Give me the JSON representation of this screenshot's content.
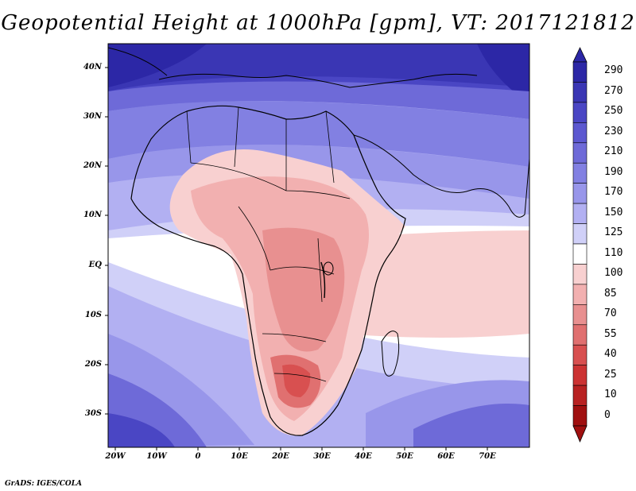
{
  "title": "Geopotential Height at 1000hPa [gpm], VT: 2017121812",
  "credit": "GrADS: IGES/COLA",
  "lat_labels": [
    "40N",
    "30N",
    "20N",
    "10N",
    "EQ",
    "10S",
    "20S",
    "30S"
  ],
  "lon_labels": [
    "20W",
    "10W",
    "0",
    "10E",
    "20E",
    "30E",
    "40E",
    "50E",
    "60E",
    "70E"
  ],
  "colorbar": {
    "labels": [
      "290",
      "270",
      "250",
      "230",
      "210",
      "190",
      "170",
      "150",
      "125",
      "110",
      "100",
      "85",
      "70",
      "55",
      "40",
      "25",
      "10",
      "0"
    ],
    "colors": [
      "#2c27a6",
      "#3a36b4",
      "#4a46c4",
      "#5c58d0",
      "#6e6ad8",
      "#8280e2",
      "#9896ea",
      "#b2b0f2",
      "#d0d0f8",
      "#ffffff",
      "#f8d0d0",
      "#f2b0b0",
      "#e89090",
      "#e07070",
      "#d85050",
      "#cc3333",
      "#b82222",
      "#a01010"
    ]
  },
  "map": {
    "ocean_color": "#d0d0f8",
    "land_warm_color": "#f2b0b0"
  }
}
